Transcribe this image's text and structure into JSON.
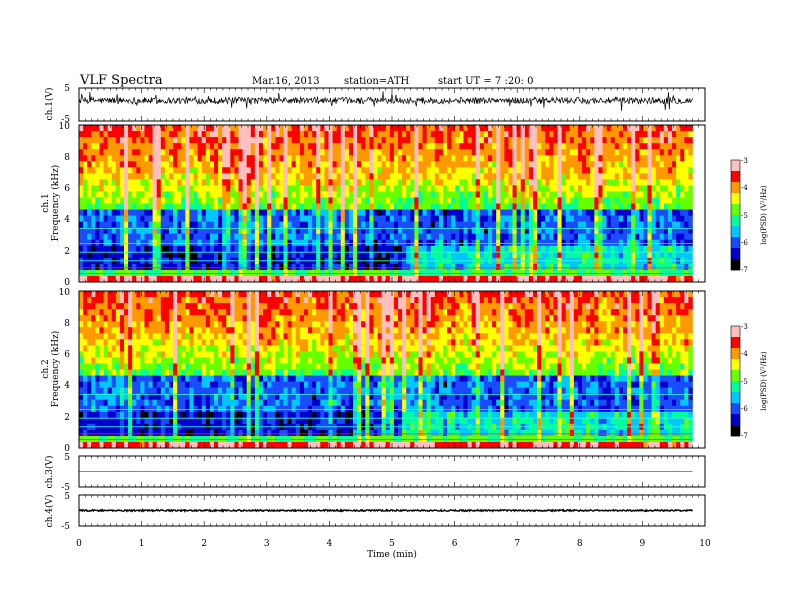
{
  "header": {
    "title": "VLF  Spectra",
    "date": "Mar.16, 2013",
    "station": "station=ATH",
    "start": "start  UT  =   7  :20: 0"
  },
  "chart_data": [
    {
      "id": "ch1_waveform",
      "type": "line",
      "ylabel": "ch.1(V)",
      "yticks": [
        "5",
        "-5"
      ],
      "ylim": [
        -5,
        5
      ],
      "xlim": [
        0,
        10
      ],
      "x_extent_min": 9.8,
      "baseline": 1.2,
      "noise_amplitude": 1.0
    },
    {
      "id": "ch1_spectrogram",
      "type": "heatmap",
      "ylabel": "Frequency (kHz)",
      "channel_label": "ch.1",
      "yticks": [
        "0",
        "2",
        "4",
        "6",
        "8",
        "10"
      ],
      "ylim": [
        0,
        10
      ],
      "xlim": [
        0,
        10
      ],
      "x_extent_min": 9.8,
      "colorbar": {
        "label": "log(PSD) (V²/Hz)",
        "ticks": [
          "-3",
          "-4",
          "-5",
          "-6",
          "-7"
        ],
        "range": [
          -7,
          -3
        ]
      },
      "transition_min": 5.2
    },
    {
      "id": "ch2_spectrogram",
      "type": "heatmap",
      "ylabel": "Frequency (kHz)",
      "channel_label": "ch.2",
      "yticks": [
        "0",
        "2",
        "4",
        "6",
        "8",
        "10"
      ],
      "ylim": [
        0,
        10
      ],
      "xlim": [
        0,
        10
      ],
      "x_extent_min": 9.8,
      "colorbar": {
        "label": "log(PSD) (V²/Hz)",
        "ticks": [
          "-3",
          "-4",
          "-5",
          "-6",
          "-7"
        ],
        "range": [
          -7,
          -3
        ]
      },
      "transition_min": 5.2
    },
    {
      "id": "ch3_waveform",
      "type": "line",
      "ylabel": "ch.3(V)",
      "yticks": [
        "5",
        "-5"
      ],
      "ylim": [
        -5,
        5
      ],
      "xlim": [
        0,
        10
      ],
      "x_extent_min": 9.8,
      "baseline": 0.0,
      "noise_amplitude": 0.05
    },
    {
      "id": "ch4_waveform",
      "type": "line",
      "ylabel": "ch.4(V)",
      "yticks": [
        "5",
        "-5"
      ],
      "ylim": [
        -5,
        5
      ],
      "xlim": [
        0,
        10
      ],
      "x_extent_min": 9.8,
      "baseline": 0.0,
      "noise_amplitude": 0.25
    }
  ],
  "x_axis": {
    "label": "Time  (min)",
    "ticks": [
      "0",
      "1",
      "2",
      "3",
      "4",
      "5",
      "6",
      "7",
      "8",
      "9",
      "10"
    ],
    "range": [
      0,
      10
    ]
  },
  "colors": {
    "scale": [
      "#000000",
      "#0000cc",
      "#1a4cff",
      "#00c8ff",
      "#00ff99",
      "#66ff00",
      "#ffff00",
      "#ff9900",
      "#ff0000",
      "#ffbfbf"
    ]
  }
}
